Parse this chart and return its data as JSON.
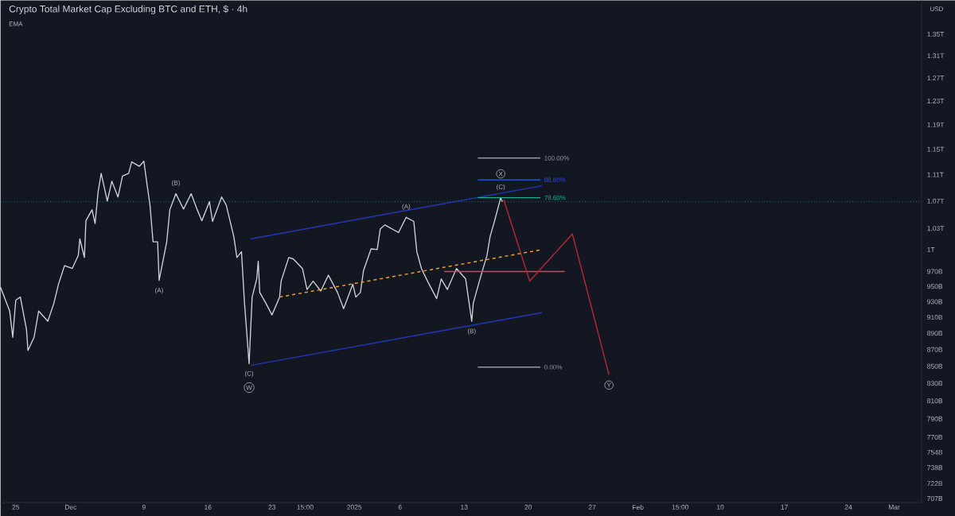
{
  "chart_data": {
    "type": "line",
    "title": "Crypto Total Market Cap Excluding BTC and ETH, $ · 4h",
    "log": "y",
    "xlim": [
      "2024-11-23T08:00",
      "2025-03-04T00:00"
    ],
    "ylim": [
      703000000000.0,
      1415000000000.0
    ],
    "xticks": [
      {
        "value": "2024-11-25",
        "label": "25"
      },
      {
        "value": "2024-12-01",
        "label": "Dec"
      },
      {
        "value": "2024-12-09",
        "label": "9"
      },
      {
        "value": "2024-12-16",
        "label": "16"
      },
      {
        "value": "2024-12-23",
        "label": "23"
      },
      {
        "value": "2024-12-26T15:00",
        "label": "15:00"
      },
      {
        "value": "2025-01-01",
        "label": "2025"
      },
      {
        "value": "2025-01-06",
        "label": "6"
      },
      {
        "value": "2025-01-13",
        "label": "13"
      },
      {
        "value": "2025-01-20",
        "label": "20"
      },
      {
        "value": "2025-01-27",
        "label": "27"
      },
      {
        "value": "2025-02-01",
        "label": "Feb"
      },
      {
        "value": "2025-02-05T15:00",
        "label": "15:00"
      },
      {
        "value": "2025-02-10",
        "label": "10"
      },
      {
        "value": "2025-02-17",
        "label": "17"
      },
      {
        "value": "2025-02-24",
        "label": "24"
      },
      {
        "value": "2025-03-01",
        "label": "Mar"
      }
    ],
    "yticks": [
      {
        "value": 707000000000.0,
        "label": "707B"
      },
      {
        "value": 722000000000.0,
        "label": "722B"
      },
      {
        "value": 738000000000.0,
        "label": "738B"
      },
      {
        "value": 754000000000.0,
        "label": "754B"
      },
      {
        "value": 770000000000.0,
        "label": "770B"
      },
      {
        "value": 790000000000.0,
        "label": "790B"
      },
      {
        "value": 810000000000.0,
        "label": "810B"
      },
      {
        "value": 830000000000.0,
        "label": "830B"
      },
      {
        "value": 850000000000.0,
        "label": "850B"
      },
      {
        "value": 870000000000.0,
        "label": "870B"
      },
      {
        "value": 890000000000.0,
        "label": "890B"
      },
      {
        "value": 910000000000.0,
        "label": "910B"
      },
      {
        "value": 930000000000.0,
        "label": "930B"
      },
      {
        "value": 950000000000.0,
        "label": "950B"
      },
      {
        "value": 970000000000.0,
        "label": "970B"
      },
      {
        "value": 1000000000000.0,
        "label": "1T"
      },
      {
        "value": 1030000000000.0,
        "label": "1.03T"
      },
      {
        "value": 1070000000000.0,
        "label": "1.07T"
      },
      {
        "value": 1110000000000.0,
        "label": "1.11T"
      },
      {
        "value": 1150000000000.0,
        "label": "1.15T"
      },
      {
        "value": 1190000000000.0,
        "label": "1.19T"
      },
      {
        "value": 1230000000000.0,
        "label": "1.23T"
      },
      {
        "value": 1270000000000.0,
        "label": "1.27T"
      },
      {
        "value": 1310000000000.0,
        "label": "1.31T"
      },
      {
        "value": 1350000000000.0,
        "label": "1.35T"
      }
    ],
    "ref_lines": [
      {
        "axis": "y",
        "value": 1069000000000.0,
        "color": "#22ab94",
        "line_style": "dotted"
      }
    ],
    "series": [
      {
        "color": "#d1d4dc",
        "x": [
          "2024-11-23T08:00",
          "2024-11-24T08:00",
          "2024-11-24T16:00",
          "2024-11-25T00:00",
          "2024-11-25T12:00",
          "2024-11-26T04:00",
          "2024-11-26T08:00",
          "2024-11-27T00:00",
          "2024-11-27T12:00",
          "2024-11-28T12:00",
          "2024-11-29T04:00",
          "2024-11-29T16:00",
          "2024-11-30T08:00",
          "2024-12-01T04:00",
          "2024-12-01T20:00",
          "2024-12-02T00:00",
          "2024-12-02T12:00",
          "2024-12-02T16:00",
          "2024-12-03T08:00",
          "2024-12-03T16:00",
          "2024-12-04T00:00",
          "2024-12-04T08:00",
          "2024-12-05T00:00",
          "2024-12-05T12:00",
          "2024-12-06T04:00",
          "2024-12-06T16:00",
          "2024-12-07T08:00",
          "2024-12-07T16:00",
          "2024-12-08T12:00",
          "2024-12-09T00:00",
          "2024-12-09T08:00",
          "2024-12-09T16:00",
          "2024-12-10T00:00",
          "2024-12-10T12:00",
          "2024-12-10T16:00",
          "2024-12-11T12:00",
          "2024-12-11T20:00",
          "2024-12-12T12:00",
          "2024-12-13T08:00",
          "2024-12-14T04:00",
          "2024-12-14T20:00",
          "2024-12-15T08:00",
          "2024-12-16T04:00",
          "2024-12-16T12:00",
          "2024-12-17T12:00",
          "2024-12-18T00:00",
          "2024-12-18T20:00",
          "2024-12-19T04:00",
          "2024-12-19T16:00",
          "2024-12-20T00:00",
          "2024-12-20T12:00",
          "2024-12-20T20:00",
          "2024-12-21T08:00",
          "2024-12-21T12:00",
          "2024-12-21T16:00",
          "2024-12-22T08:00",
          "2024-12-23T00:00",
          "2024-12-23T20:00",
          "2024-12-24T00:00",
          "2024-12-24T20:00",
          "2024-12-25T08:00",
          "2024-12-26T08:00",
          "2024-12-26T20:00",
          "2024-12-27T12:00",
          "2024-12-28T08:00",
          "2024-12-29T04:00",
          "2024-12-30T04:00",
          "2024-12-30T20:00",
          "2024-12-31T20:00",
          "2025-01-01T04:00",
          "2025-01-01T16:00",
          "2025-01-02T00:00",
          "2025-01-02T20:00",
          "2025-01-03T12:00",
          "2025-01-03T20:00",
          "2025-01-04T08:00",
          "2025-01-05T20:00",
          "2025-01-06T16:00",
          "2025-01-07T12:00",
          "2025-01-07T20:00",
          "2025-01-08T08:00",
          "2025-01-09T00:00",
          "2025-01-10T00:00",
          "2025-01-10T12:00",
          "2025-01-11T04:00",
          "2025-01-12T04:00",
          "2025-01-13T04:00",
          "2025-01-13T20:00",
          "2025-01-14T00:00",
          "2025-01-14T16:00",
          "2025-01-15T12:00",
          "2025-01-15T20:00",
          "2025-01-16T08:00",
          "2025-01-17T00:00",
          "2025-01-17T04:00"
        ],
        "values": [
          949000000000.0,
          918000000000.0,
          885000000000.0,
          932000000000.0,
          936000000000.0,
          895000000000.0,
          869000000000.0,
          885000000000.0,
          918000000000.0,
          905000000000.0,
          928000000000.0,
          953000000000.0,
          978000000000.0,
          974000000000.0,
          992000000000.0,
          1015000000000.0,
          989000000000.0,
          1041000000000.0,
          1057000000000.0,
          1037000000000.0,
          1084000000000.0,
          1112000000000.0,
          1070000000000.0,
          1100000000000.0,
          1076000000000.0,
          1108000000000.0,
          1112000000000.0,
          1130000000000.0,
          1123000000000.0,
          1131000000000.0,
          1096000000000.0,
          1064000000000.0,
          1011000000000.0,
          1011000000000.0,
          958000000000.0,
          1011000000000.0,
          1057000000000.0,
          1081000000000.0,
          1058000000000.0,
          1081000000000.0,
          1057000000000.0,
          1041000000000.0,
          1069000000000.0,
          1040000000000.0,
          1076000000000.0,
          1064000000000.0,
          1018000000000.0,
          989000000000.0,
          997000000000.0,
          928000000000.0,
          853000000000.0,
          936000000000.0,
          960000000000.0,
          984000000000.0,
          942000000000.0,
          928000000000.0,
          913000000000.0,
          936000000000.0,
          957000000000.0,
          989000000000.0,
          987000000000.0,
          974000000000.0,
          946000000000.0,
          957000000000.0,
          944000000000.0,
          965000000000.0,
          942000000000.0,
          921000000000.0,
          953000000000.0,
          936000000000.0,
          942000000000.0,
          971000000000.0,
          1001000000000.0,
          1000000000000.0,
          1029000000000.0,
          1035000000000.0,
          1024000000000.0,
          1046000000000.0,
          1040000000000.0,
          997000000000.0,
          974000000000.0,
          957000000000.0,
          934000000000.0,
          960000000000.0,
          946000000000.0,
          974000000000.0,
          960000000000.0,
          905000000000.0,
          928000000000.0,
          957000000000.0,
          992000000000.0,
          1018000000000.0,
          1041000000000.0,
          1075000000000.0,
          1069000000000.0
        ]
      },
      {
        "color": "#2336b8",
        "x": [
          "2024-12-20T16:00",
          "2025-01-21T12:00"
        ],
        "values": [
          1015000000000.0,
          1093000000000.0
        ]
      },
      {
        "color": "#2336b8",
        "x": [
          "2024-12-20T16:00",
          "2025-01-21T12:00"
        ],
        "values": [
          851000000000.0,
          916000000000.0
        ]
      },
      {
        "color": "#f7a21b",
        "line_style": "dashed",
        "x": [
          "2024-12-23T20:00",
          "2025-01-21T12:00"
        ],
        "values": [
          936000000000.0,
          1000000000000.0
        ]
      },
      {
        "color": "#f23645",
        "x": [
          "2025-01-10T20:00",
          "2025-01-24T00:00"
        ],
        "values": [
          970000000000.0,
          970000000000.0
        ]
      },
      {
        "color": "#b22833",
        "x": [
          "2025-01-17T08:00",
          "2025-01-20T04:00",
          "2025-01-24T20:00",
          "2025-01-28T20:00"
        ],
        "values": [
          1072000000000.0,
          957000000000.0,
          1022000000000.0,
          840000000000.0
        ]
      },
      {
        "name": "100.00%",
        "color": "#9598a1",
        "x": [
          "2025-01-14T12:00",
          "2025-01-21T08:00"
        ],
        "values": [
          1136000000000.0,
          1136000000000.0
        ]
      },
      {
        "name": "88.60%",
        "color": "#2950c8",
        "x": [
          "2025-01-14T12:00",
          "2025-01-21T08:00"
        ],
        "values": [
          1102000000000.0,
          1102000000000.0
        ]
      },
      {
        "name": "78.60%",
        "color": "#22ab94",
        "x": [
          "2025-01-14T12:00",
          "2025-01-21T08:00"
        ],
        "values": [
          1075000000000.0,
          1075000000000.0
        ]
      },
      {
        "name": "0.00%",
        "color": "#9598a1",
        "x": [
          "2025-01-14T12:00",
          "2025-01-21T08:00"
        ],
        "values": [
          849000000000.0,
          849000000000.0
        ]
      }
    ],
    "annotations": [
      "EMA",
      "USD",
      {
        "text": "(B)",
        "x": "2024-12-12T12:00",
        "y": 1081000000000.0
      },
      {
        "text": "(A)",
        "x": "2024-12-10T16:00",
        "y": 958000000000.0
      },
      {
        "text": "(C)",
        "x": "2024-12-20T12:00",
        "y": 853000000000.0
      },
      "W",
      {
        "text": "(A)",
        "x": "2025-01-06T16:00",
        "y": 1046000000000.0
      },
      {
        "text": "(B)",
        "x": "2025-01-13T20:00",
        "y": 905000000000.0
      },
      {
        "text": "(C)",
        "x": "2025-01-17T00:00",
        "y": 1075000000000.0
      },
      "X",
      {
        "text": "Y",
        "x": "2025-01-28T20:00",
        "y": 840000000000.0
      }
    ]
  }
}
